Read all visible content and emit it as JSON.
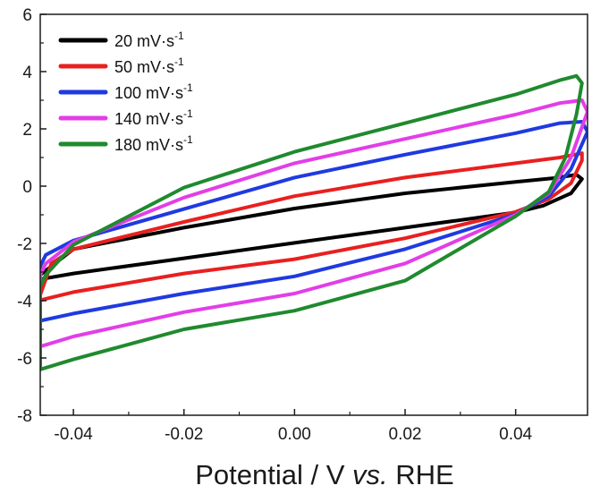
{
  "chart_data": {
    "type": "line",
    "xlabel": {
      "prefix": "Potential / V ",
      "italic": "vs.",
      "suffix": " RHE"
    },
    "ylabel": "",
    "xlim": [
      -0.046,
      0.053
    ],
    "ylim": [
      -8,
      6
    ],
    "xticks": [
      -0.04,
      -0.02,
      0.0,
      0.02,
      0.04
    ],
    "xtick_labels": [
      "-0.04",
      "-0.02",
      "0.00",
      "0.02",
      "0.04"
    ],
    "yticks": [
      -8,
      -6,
      -4,
      -2,
      0,
      2,
      4,
      6
    ],
    "ytick_labels": [
      "-8",
      "-6",
      "-4",
      "-2",
      "0",
      "2",
      "4",
      "6"
    ],
    "grid": false,
    "legend_position": "top-left",
    "series": [
      {
        "name": "20 mV·s",
        "unit_exponent": "-1",
        "color": "#000000",
        "anodic": [
          [
            -0.046,
            -3.1
          ],
          [
            -0.04,
            -2.2
          ],
          [
            -0.02,
            -1.45
          ],
          [
            0.0,
            -0.78
          ],
          [
            0.02,
            -0.25
          ],
          [
            0.04,
            0.15
          ],
          [
            0.047,
            0.28
          ],
          [
            0.051,
            0.4
          ]
        ],
        "cathodic": [
          [
            0.052,
            0.25
          ],
          [
            0.05,
            -0.25
          ],
          [
            0.045,
            -0.68
          ],
          [
            0.04,
            -0.92
          ],
          [
            0.02,
            -1.45
          ],
          [
            0.0,
            -1.98
          ],
          [
            -0.02,
            -2.52
          ],
          [
            -0.04,
            -3.05
          ],
          [
            -0.046,
            -3.25
          ]
        ]
      },
      {
        "name": "50 mV·s",
        "unit_exponent": "-1",
        "color": "#e8201f",
        "anodic": [
          [
            -0.046,
            -3.8
          ],
          [
            -0.044,
            -2.7
          ],
          [
            -0.04,
            -2.2
          ],
          [
            -0.02,
            -1.25
          ],
          [
            0.0,
            -0.35
          ],
          [
            0.02,
            0.3
          ],
          [
            0.04,
            0.8
          ],
          [
            0.048,
            1.0
          ],
          [
            0.052,
            1.15
          ]
        ],
        "cathodic": [
          [
            0.052,
            0.9
          ],
          [
            0.05,
            0.1
          ],
          [
            0.046,
            -0.45
          ],
          [
            0.04,
            -0.9
          ],
          [
            0.02,
            -1.82
          ],
          [
            0.0,
            -2.55
          ],
          [
            -0.02,
            -3.05
          ],
          [
            -0.04,
            -3.7
          ],
          [
            -0.046,
            -3.98
          ]
        ]
      },
      {
        "name": "100 mV·s",
        "unit_exponent": "-1",
        "color": "#1f3ae0",
        "anodic": [
          [
            -0.046,
            -2.8
          ],
          [
            -0.045,
            -2.4
          ],
          [
            -0.04,
            -1.9
          ],
          [
            -0.02,
            -0.8
          ],
          [
            0.0,
            0.3
          ],
          [
            0.02,
            1.1
          ],
          [
            0.04,
            1.85
          ],
          [
            0.048,
            2.2
          ],
          [
            0.052,
            2.25
          ]
        ],
        "cathodic": [
          [
            0.053,
            1.9
          ],
          [
            0.05,
            0.6
          ],
          [
            0.046,
            -0.35
          ],
          [
            0.04,
            -0.98
          ],
          [
            0.02,
            -2.2
          ],
          [
            0.0,
            -3.15
          ],
          [
            -0.02,
            -3.75
          ],
          [
            -0.04,
            -4.45
          ],
          [
            -0.046,
            -4.7
          ]
        ]
      },
      {
        "name": "140 mV·s",
        "unit_exponent": "-1",
        "color": "#e23ee8",
        "anodic": [
          [
            -0.046,
            -3.1
          ],
          [
            -0.045,
            -2.7
          ],
          [
            -0.04,
            -1.95
          ],
          [
            -0.02,
            -0.4
          ],
          [
            0.0,
            0.8
          ],
          [
            0.02,
            1.65
          ],
          [
            0.04,
            2.5
          ],
          [
            0.048,
            2.9
          ],
          [
            0.052,
            3.0
          ]
        ],
        "cathodic": [
          [
            0.053,
            2.6
          ],
          [
            0.05,
            1.0
          ],
          [
            0.046,
            -0.25
          ],
          [
            0.04,
            -1.0
          ],
          [
            0.02,
            -2.7
          ],
          [
            0.0,
            -3.75
          ],
          [
            -0.02,
            -4.4
          ],
          [
            -0.04,
            -5.25
          ],
          [
            -0.046,
            -5.6
          ]
        ]
      },
      {
        "name": "180 mV·s",
        "unit_exponent": "-1",
        "color": "#1f8a2e",
        "anodic": [
          [
            -0.046,
            -3.5
          ],
          [
            -0.045,
            -3.1
          ],
          [
            -0.04,
            -2.05
          ],
          [
            -0.02,
            -0.05
          ],
          [
            0.0,
            1.2
          ],
          [
            0.02,
            2.2
          ],
          [
            0.04,
            3.2
          ],
          [
            0.048,
            3.7
          ],
          [
            0.051,
            3.85
          ]
        ],
        "cathodic": [
          [
            0.052,
            3.6
          ],
          [
            0.051,
            2.5
          ],
          [
            0.049,
            1.0
          ],
          [
            0.046,
            -0.2
          ],
          [
            0.04,
            -1.05
          ],
          [
            0.02,
            -3.3
          ],
          [
            0.0,
            -4.35
          ],
          [
            -0.02,
            -5.0
          ],
          [
            -0.04,
            -6.05
          ],
          [
            -0.046,
            -6.4
          ]
        ]
      }
    ]
  }
}
